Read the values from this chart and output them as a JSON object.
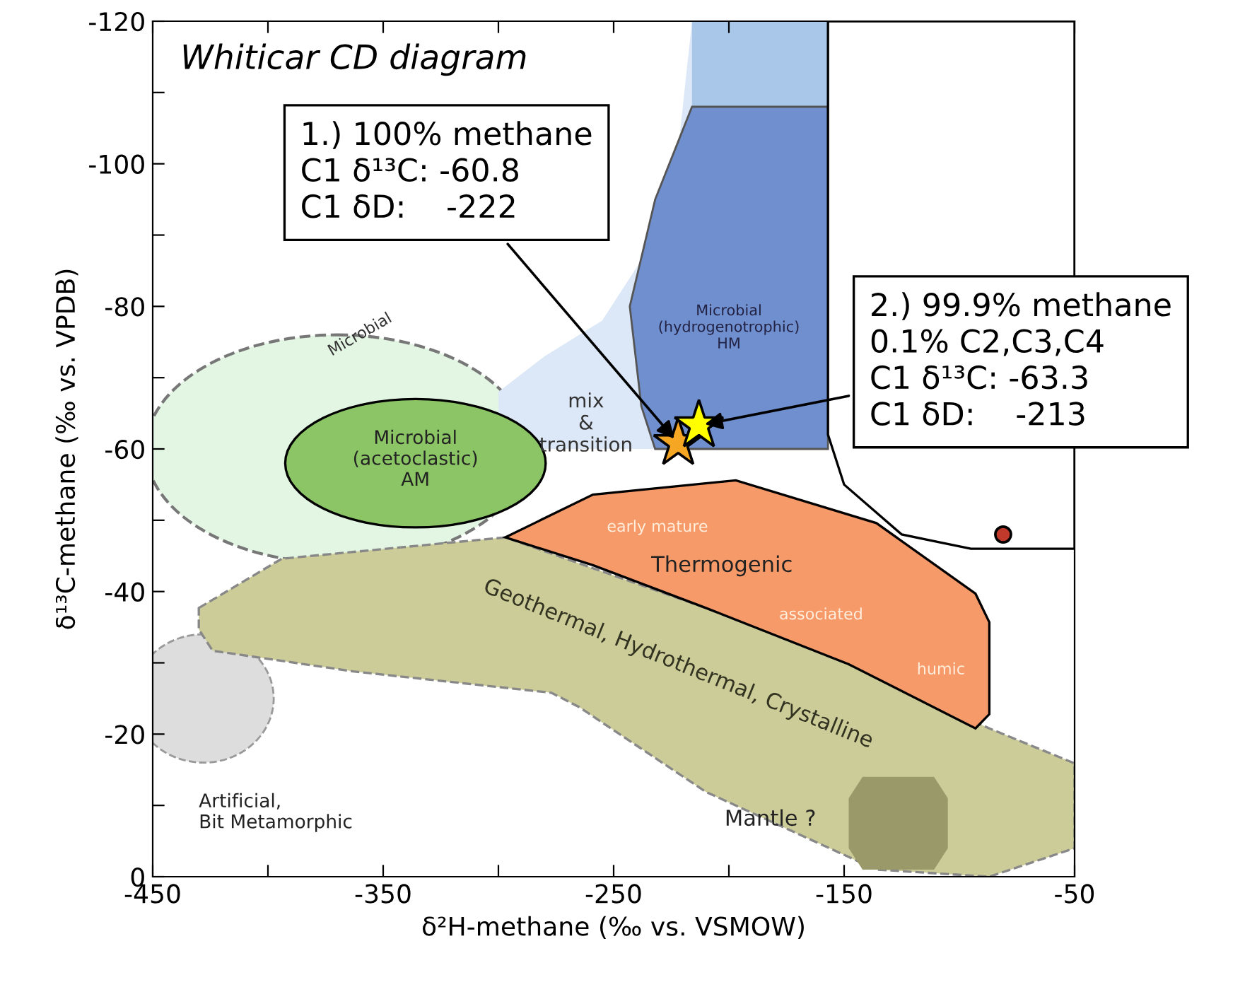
{
  "chart_data": {
    "type": "scatter",
    "title": "Whiticar CD diagram",
    "xlabel": "δ²H-methane (‰ vs. VSMOW)",
    "ylabel": "δ¹³C-methane (‰ vs. VPDB)",
    "xlim": [
      -450,
      -50
    ],
    "ylim": [
      0,
      -120
    ],
    "xticks": [
      -450,
      {
        "value": -400,
        "label": null
      },
      -350,
      {
        "value": -300,
        "label": null
      },
      -250,
      {
        "value": -200,
        "label": null
      },
      -150,
      {
        "value": -100,
        "label": null
      },
      -50
    ],
    "yticks": [
      0,
      {
        "value": -10,
        "label": null
      },
      -20,
      {
        "value": -30,
        "label": null
      },
      -40,
      {
        "value": -50,
        "label": null
      },
      -60,
      {
        "value": -70,
        "label": null
      },
      -80,
      {
        "value": -90,
        "label": null
      },
      -100,
      {
        "value": -110,
        "label": null
      },
      -120
    ],
    "series": [
      {
        "color": "#f5a623",
        "x": [
          -222
        ],
        "values": [
          -60.8
        ],
        "marker": "star"
      },
      {
        "color": "#ffff00",
        "x": [
          -213
        ],
        "values": [
          -63.3
        ],
        "marker": "star"
      },
      {
        "color": "#c0392b",
        "x": [
          -81
        ],
        "values": [
          -48
        ],
        "marker": "circle"
      }
    ],
    "annotations": [
      {
        "text": "1.) 100% methane\nC1 δ¹³C: -60.8\nC1 δD:    -222",
        "x": -222,
        "y": -60.8
      },
      {
        "text": "2.) 99.9% methane\n0.1% C2,C3,C4\nC1 δ¹³C: -63.3\nC1 δD:    -213",
        "x": -213,
        "y": -63.3
      },
      "Microbial",
      "Microbial\n(hydrogenotrophic)\nHM",
      "mix\n&\ntransition",
      "Microbial\n(acetoclastic)\nAM",
      "early mature",
      "Thermogenic",
      "associated",
      "humic",
      "Geothermal, Hydrothermal, Crystalline",
      "Artificial,\nBit Metamorphic",
      "Mantle ?"
    ]
  }
}
